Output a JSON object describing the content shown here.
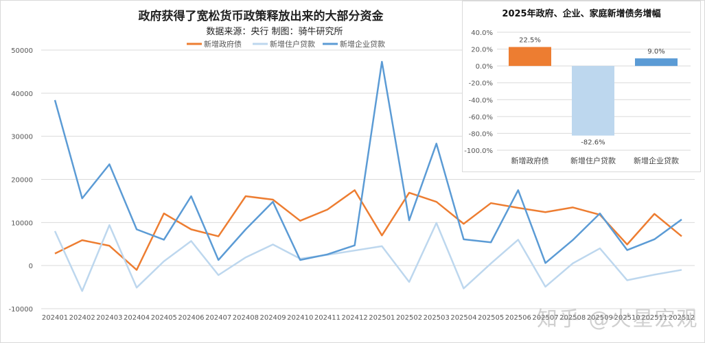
{
  "chart_data": [
    {
      "type": "line",
      "title": "政府获得了宽松货币政策释放出来的大部分资金",
      "subtitle": "数据来源：央行   制图：骑牛研究所",
      "legend_position": "top",
      "grid": true,
      "ylim": [
        -10000,
        50000
      ],
      "yticks": [
        -10000,
        0,
        10000,
        20000,
        30000,
        40000,
        50000
      ],
      "categories": [
        "202401",
        "202402",
        "202403",
        "202404",
        "202405",
        "202406",
        "202407",
        "202408",
        "202409",
        "202410",
        "202411",
        "202412",
        "202501",
        "202502",
        "202503",
        "202504",
        "202505",
        "202506",
        "202507",
        "202508",
        "202509",
        "202510",
        "202511",
        "202512"
      ],
      "series": [
        {
          "name": "新增政府债",
          "color": "#ED7D31",
          "values": [
            2800,
            5900,
            4600,
            -1000,
            12100,
            8400,
            6800,
            16100,
            15300,
            10400,
            13000,
            17500,
            7000,
            16900,
            14800,
            9700,
            14500,
            13400,
            12400,
            13500,
            11800,
            4900,
            12000,
            6800
          ]
        },
        {
          "name": "新增住户贷款",
          "color": "#BDD7EE",
          "values": [
            8000,
            -5900,
            9400,
            -5100,
            1000,
            5700,
            -2200,
            1900,
            4900,
            1600,
            2500,
            3500,
            4500,
            -3800,
            9900,
            -5300,
            500,
            6000,
            -4900,
            500,
            4000,
            -3400,
            -2100,
            -1000
          ]
        },
        {
          "name": "新增企业贷款",
          "color": "#5B9BD5",
          "values": [
            38400,
            15600,
            23500,
            8400,
            6000,
            16100,
            1300,
            8400,
            14800,
            1300,
            2600,
            4700,
            47300,
            10500,
            28300,
            6100,
            5400,
            17500,
            600,
            5900,
            12100,
            3600,
            6100,
            10700
          ]
        }
      ]
    },
    {
      "type": "bar",
      "title": "2025年政府、企业、家庭新增债务增幅",
      "grid": true,
      "ylim": [
        -100,
        40
      ],
      "yticks": [
        -100,
        -80,
        -60,
        -40,
        -20,
        0,
        20,
        40
      ],
      "tick_format": "percent_1dp",
      "categories": [
        "新增政府债",
        "新增住户贷款",
        "新增企业贷款"
      ],
      "values": [
        22.5,
        -82.6,
        9.0
      ],
      "data_labels": [
        "22.5%",
        "-82.6%",
        "9.0%"
      ],
      "colors": [
        "#ED7D31",
        "#BDD7EE",
        "#5B9BD5"
      ]
    }
  ],
  "watermark": "知乎 @火星宏观"
}
